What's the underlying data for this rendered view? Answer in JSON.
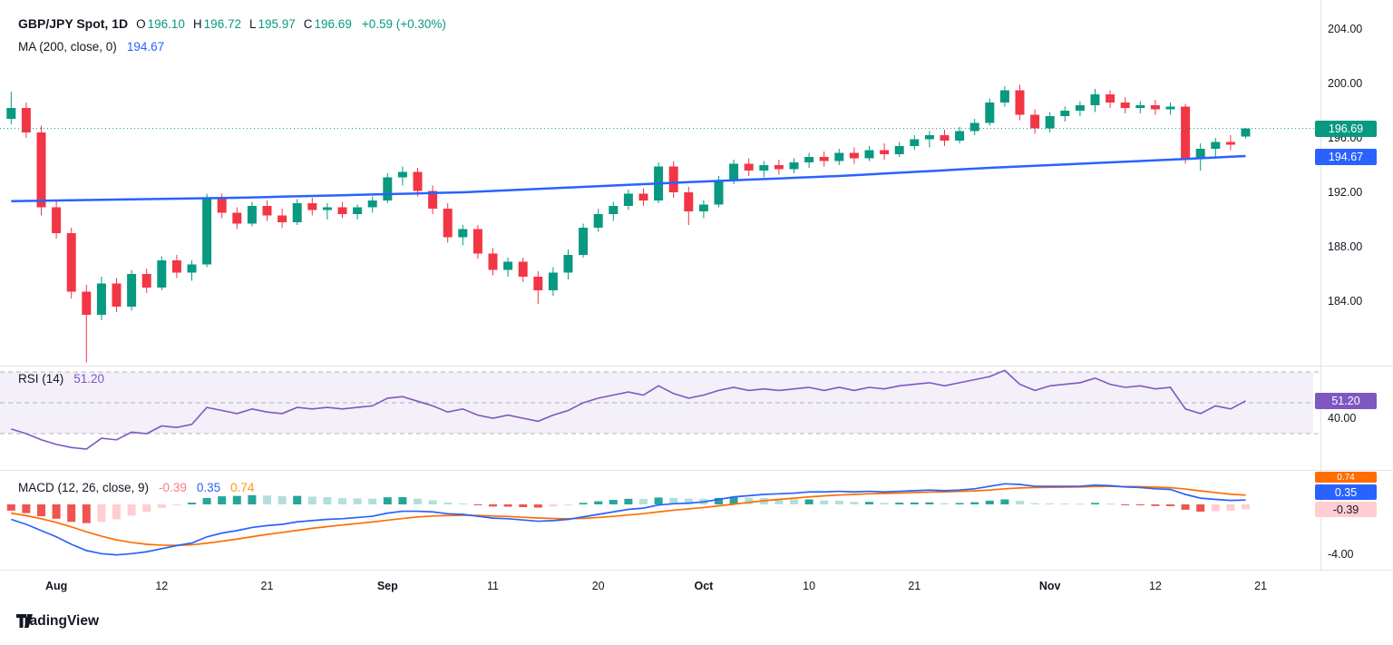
{
  "header": {
    "symbol": "GBP/JPY Spot, 1D",
    "ohlc": [
      {
        "label": "O",
        "value": "196.10"
      },
      {
        "label": "H",
        "value": "196.72"
      },
      {
        "label": "L",
        "value": "195.97"
      },
      {
        "label": "C",
        "value": "196.69"
      }
    ],
    "change": "+0.59 (+0.30%)",
    "ma_label": "MA (200, close, 0)",
    "ma_value": "194.67"
  },
  "rsi_header": {
    "label": "RSI (14)",
    "value": "51.20"
  },
  "macd_header": {
    "label": "MACD (12, 26, close, 9)",
    "hist": "-0.39",
    "macd": "0.35",
    "signal": "0.74"
  },
  "logo": {
    "text": "TradingView"
  },
  "colors": {
    "up": "#089981",
    "down": "#F23645",
    "ma": "#2962FF",
    "rsi": "#7E57C2",
    "macd": "#2962FF",
    "signal": "#FF6D00",
    "hist_pos": "#26A69A",
    "hist_pos_weak": "#B2DFDB",
    "hist_neg": "#EF5350",
    "hist_neg_weak": "#FFCDD2",
    "last_price_badge": "#089981",
    "grid_separator": "#E0E3EB"
  },
  "chart_data": {
    "type": "candlestick",
    "symbol": "GBP/JPY Spot",
    "interval": "1D",
    "title": "GBP/JPY Spot, 1D with MA(200), RSI(14), MACD(12,26,9)",
    "ylim_price": [
      179.0,
      206.0
    ],
    "ohlc_current": {
      "o": 196.1,
      "h": 196.72,
      "l": 195.97,
      "c": 196.69,
      "change_abs": 0.59,
      "change_pct": 0.3
    },
    "price_axis_ticks": [
      204,
      200,
      196,
      192,
      188,
      184
    ],
    "time_axis": [
      {
        "text": "Aug",
        "i": 3,
        "bold": true
      },
      {
        "text": "12",
        "i": 10
      },
      {
        "text": "21",
        "i": 17
      },
      {
        "text": "Sep",
        "i": 25,
        "bold": true
      },
      {
        "text": "11",
        "i": 32
      },
      {
        "text": "20",
        "i": 39
      },
      {
        "text": "Oct",
        "i": 46,
        "bold": true
      },
      {
        "text": "10",
        "i": 53
      },
      {
        "text": "21",
        "i": 60
      },
      {
        "text": "Nov",
        "i": 69,
        "bold": true
      },
      {
        "text": "12",
        "i": 76
      },
      {
        "text": "21",
        "i": 83
      }
    ],
    "candles": [
      [
        197.4,
        199.4,
        197.0,
        198.2
      ],
      [
        198.2,
        198.6,
        196.0,
        196.4
      ],
      [
        196.4,
        196.9,
        190.3,
        190.9
      ],
      [
        190.9,
        191.4,
        188.6,
        189.0
      ],
      [
        189.0,
        189.4,
        184.2,
        184.7
      ],
      [
        184.7,
        185.2,
        179.5,
        183.0
      ],
      [
        183.0,
        185.8,
        182.6,
        185.3
      ],
      [
        185.3,
        185.7,
        183.2,
        183.6
      ],
      [
        183.6,
        186.3,
        183.3,
        186.0
      ],
      [
        186.0,
        186.4,
        184.6,
        185.0
      ],
      [
        185.0,
        187.3,
        184.8,
        187.0
      ],
      [
        187.0,
        187.4,
        185.7,
        186.1
      ],
      [
        186.1,
        187.0,
        185.5,
        186.7
      ],
      [
        186.7,
        191.9,
        186.5,
        191.5
      ],
      [
        191.5,
        191.9,
        190.1,
        190.5
      ],
      [
        190.5,
        190.9,
        189.3,
        189.7
      ],
      [
        189.7,
        191.3,
        189.5,
        191.0
      ],
      [
        191.0,
        191.4,
        189.9,
        190.3
      ],
      [
        190.3,
        190.8,
        189.4,
        189.8
      ],
      [
        189.8,
        191.5,
        189.6,
        191.2
      ],
      [
        191.2,
        191.6,
        190.3,
        190.7
      ],
      [
        190.7,
        191.2,
        190.0,
        190.9
      ],
      [
        190.9,
        191.3,
        190.1,
        190.4
      ],
      [
        190.4,
        191.1,
        190.0,
        190.9
      ],
      [
        190.9,
        191.7,
        190.5,
        191.4
      ],
      [
        191.4,
        193.4,
        191.2,
        193.1
      ],
      [
        193.1,
        193.9,
        192.5,
        193.5
      ],
      [
        193.5,
        193.8,
        191.7,
        192.1
      ],
      [
        192.1,
        192.5,
        190.4,
        190.8
      ],
      [
        190.8,
        191.2,
        188.3,
        188.7
      ],
      [
        188.7,
        189.6,
        188.1,
        189.3
      ],
      [
        189.3,
        189.6,
        187.1,
        187.5
      ],
      [
        187.5,
        187.9,
        185.9,
        186.3
      ],
      [
        186.3,
        187.2,
        185.8,
        186.9
      ],
      [
        186.9,
        187.2,
        185.4,
        185.8
      ],
      [
        185.8,
        186.2,
        183.8,
        184.8
      ],
      [
        184.8,
        186.5,
        184.4,
        186.1
      ],
      [
        186.1,
        187.8,
        185.6,
        187.4
      ],
      [
        187.4,
        189.7,
        187.2,
        189.4
      ],
      [
        189.4,
        190.8,
        189.1,
        190.4
      ],
      [
        190.4,
        191.3,
        189.9,
        191.0
      ],
      [
        191.0,
        192.2,
        190.7,
        191.9
      ],
      [
        191.9,
        192.3,
        191.0,
        191.4
      ],
      [
        191.4,
        194.2,
        191.2,
        193.9
      ],
      [
        193.9,
        194.3,
        191.6,
        192.0
      ],
      [
        192.0,
        192.4,
        189.6,
        190.6
      ],
      [
        190.6,
        191.4,
        190.1,
        191.1
      ],
      [
        191.1,
        193.2,
        190.9,
        192.9
      ],
      [
        192.9,
        194.4,
        192.6,
        194.1
      ],
      [
        194.1,
        194.5,
        193.2,
        193.6
      ],
      [
        193.6,
        194.3,
        193.1,
        194.0
      ],
      [
        194.0,
        194.4,
        193.3,
        193.7
      ],
      [
        193.7,
        194.5,
        193.4,
        194.2
      ],
      [
        194.2,
        194.9,
        193.8,
        194.6
      ],
      [
        194.6,
        195.0,
        193.9,
        194.3
      ],
      [
        194.3,
        195.2,
        194.0,
        194.9
      ],
      [
        194.9,
        195.3,
        194.1,
        194.5
      ],
      [
        194.5,
        195.4,
        194.3,
        195.1
      ],
      [
        195.1,
        195.6,
        194.4,
        194.8
      ],
      [
        194.8,
        195.7,
        194.6,
        195.4
      ],
      [
        195.4,
        196.2,
        195.1,
        195.9
      ],
      [
        195.9,
        196.5,
        195.3,
        196.2
      ],
      [
        196.2,
        196.6,
        195.4,
        195.8
      ],
      [
        195.8,
        196.8,
        195.6,
        196.5
      ],
      [
        196.5,
        197.4,
        196.2,
        197.1
      ],
      [
        197.1,
        198.9,
        196.9,
        198.6
      ],
      [
        198.6,
        199.8,
        198.3,
        199.5
      ],
      [
        199.5,
        199.9,
        197.3,
        197.7
      ],
      [
        197.7,
        198.1,
        196.3,
        196.7
      ],
      [
        196.7,
        197.9,
        196.4,
        197.6
      ],
      [
        197.6,
        198.3,
        197.2,
        198.0
      ],
      [
        198.0,
        198.7,
        197.6,
        198.4
      ],
      [
        198.4,
        199.6,
        197.9,
        199.2
      ],
      [
        199.2,
        199.5,
        198.2,
        198.6
      ],
      [
        198.6,
        199.0,
        197.8,
        198.2
      ],
      [
        198.2,
        198.7,
        197.8,
        198.4
      ],
      [
        198.4,
        198.8,
        197.7,
        198.1
      ],
      [
        198.1,
        198.6,
        197.7,
        198.3
      ],
      [
        198.3,
        198.5,
        194.1,
        194.5
      ],
      [
        194.5,
        195.6,
        193.6,
        195.2
      ],
      [
        195.2,
        196.0,
        194.6,
        195.7
      ],
      [
        195.7,
        196.2,
        195.1,
        195.5
      ],
      [
        196.1,
        196.72,
        195.97,
        196.69
      ]
    ],
    "ma200": {
      "period": 200,
      "current": 194.67,
      "points": [
        [
          0,
          191.35
        ],
        [
          15,
          191.6
        ],
        [
          30,
          192.0
        ],
        [
          45,
          192.75
        ],
        [
          55,
          193.2
        ],
        [
          65,
          193.8
        ],
        [
          72,
          194.15
        ],
        [
          78,
          194.45
        ],
        [
          82,
          194.67
        ]
      ]
    },
    "rsi": {
      "period": 14,
      "current": 51.2,
      "bands": [
        70,
        50,
        30
      ],
      "axis_tick": 40,
      "series": [
        33,
        30,
        26,
        23,
        21,
        20,
        27,
        26,
        31,
        30,
        35,
        34,
        36,
        47,
        45,
        43,
        46,
        44,
        43,
        47,
        46,
        47,
        46,
        47,
        48,
        53,
        54,
        51,
        48,
        44,
        46,
        42,
        40,
        42,
        40,
        38,
        42,
        45,
        50,
        53,
        55,
        57,
        55,
        61,
        56,
        53,
        55,
        58,
        60,
        58,
        59,
        58,
        59,
        60,
        58,
        60,
        58,
        60,
        59,
        61,
        62,
        63,
        61,
        63,
        65,
        67,
        71,
        62,
        58,
        61,
        62,
        63,
        66,
        62,
        60,
        61,
        59,
        60,
        46,
        43,
        48,
        46,
        51.2
      ]
    },
    "macd": {
      "params": "12, 26, close, 9",
      "axis_tick": -4,
      "current": {
        "hist": -0.39,
        "macd": 0.35,
        "signal": 0.74
      },
      "macd_line": [
        -1.2,
        -1.6,
        -2.1,
        -2.6,
        -3.2,
        -3.7,
        -3.95,
        -4.05,
        -3.95,
        -3.8,
        -3.55,
        -3.3,
        -3.1,
        -2.6,
        -2.3,
        -2.1,
        -1.85,
        -1.7,
        -1.6,
        -1.4,
        -1.3,
        -1.2,
        -1.15,
        -1.05,
        -0.95,
        -0.7,
        -0.55,
        -0.55,
        -0.6,
        -0.75,
        -0.8,
        -0.95,
        -1.1,
        -1.15,
        -1.25,
        -1.35,
        -1.3,
        -1.2,
        -1.0,
        -0.8,
        -0.6,
        -0.4,
        -0.3,
        -0.05,
        0.05,
        0.1,
        0.2,
        0.4,
        0.6,
        0.7,
        0.8,
        0.85,
        0.9,
        1.0,
        1.0,
        1.05,
        1.0,
        1.05,
        1.0,
        1.05,
        1.1,
        1.15,
        1.1,
        1.15,
        1.25,
        1.45,
        1.65,
        1.6,
        1.45,
        1.45,
        1.45,
        1.45,
        1.55,
        1.5,
        1.4,
        1.35,
        1.25,
        1.2,
        0.8,
        0.5,
        0.4,
        0.32,
        0.35
      ],
      "signal_line": [
        -0.7,
        -0.9,
        -1.15,
        -1.45,
        -1.8,
        -2.2,
        -2.55,
        -2.85,
        -3.05,
        -3.2,
        -3.27,
        -3.28,
        -3.24,
        -3.11,
        -2.95,
        -2.78,
        -2.59,
        -2.41,
        -2.25,
        -2.08,
        -1.92,
        -1.78,
        -1.65,
        -1.53,
        -1.41,
        -1.27,
        -1.13,
        -1.01,
        -0.93,
        -0.89,
        -0.87,
        -0.89,
        -0.93,
        -0.97,
        -1.03,
        -1.09,
        -1.13,
        -1.15,
        -1.12,
        -1.05,
        -0.96,
        -0.85,
        -0.74,
        -0.6,
        -0.47,
        -0.36,
        -0.25,
        -0.12,
        0.02,
        0.16,
        0.29,
        0.4,
        0.5,
        0.6,
        0.68,
        0.75,
        0.8,
        0.85,
        0.88,
        0.91,
        0.95,
        0.99,
        1.01,
        1.04,
        1.08,
        1.15,
        1.25,
        1.32,
        1.35,
        1.37,
        1.38,
        1.4,
        1.43,
        1.44,
        1.43,
        1.42,
        1.38,
        1.34,
        1.23,
        1.08,
        0.95,
        0.82,
        0.74
      ]
    },
    "badges": {
      "close": "196.69",
      "ma": "194.67",
      "rsi": "51.20",
      "macd_signal": "0.74",
      "macd_macd": "0.35",
      "macd_hist": "-0.39"
    },
    "rsi_axis_label": "40.00",
    "macd_axis_label": "-4.00"
  }
}
